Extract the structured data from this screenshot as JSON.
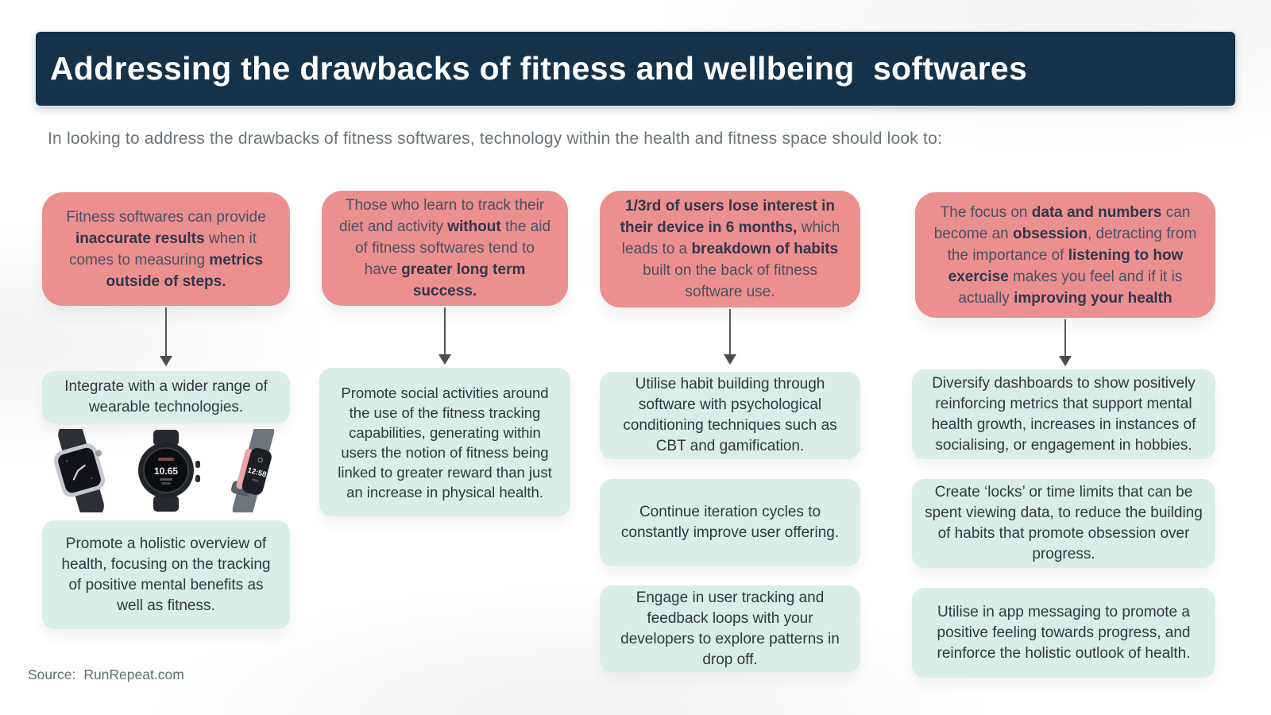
{
  "title": "Addressing the drawbacks of fitness and wellbeing  softwares",
  "subtitle": "In looking to address the drawbacks of fitness softwares, technology within the health and fitness space should look to:",
  "source": {
    "label": "Source:",
    "value": "RunRepeat.com"
  },
  "colors": {
    "navy": "#14334B",
    "pink": "#EB8F8F",
    "mint": "#D8EEE7"
  },
  "watches": {
    "garmin_display": "10.65",
    "fitbit_display": "12:58"
  },
  "columns": [
    {
      "drawback": [
        {
          "text": "Fitness softwares can provide "
        },
        {
          "text": "inaccurate results",
          "bold": true
        },
        {
          "text": " when it comes to measuring "
        },
        {
          "text": "metrics outside of steps.",
          "bold": true
        }
      ],
      "solutions": [
        "Integrate with a wider range of wearable technologies.",
        "Promote a holistic overview of health, focusing on the tracking of positive mental benefits as well as fitness."
      ]
    },
    {
      "drawback": [
        {
          "text": "Those who learn to track their diet and activity "
        },
        {
          "text": "without",
          "bold": true
        },
        {
          "text": " the aid of fitness softwares tend to have "
        },
        {
          "text": "greater long term success.",
          "bold": true
        }
      ],
      "solutions": [
        "Promote social activities around the use of the fitness tracking capabilities, generating within users the notion of fitness being linked to greater reward than just an increase in physical health."
      ]
    },
    {
      "drawback": [
        {
          "text": "1/3rd of users lose interest in their device in 6 months,",
          "bold": true
        },
        {
          "text": " which leads to a "
        },
        {
          "text": "breakdown of habits",
          "bold": true
        },
        {
          "text": " built on the back of fitness software use."
        }
      ],
      "solutions": [
        "Utilise habit building through software with psychological conditioning techniques such as CBT and gamification.",
        "Continue iteration cycles to constantly improve user offering.",
        "Engage in user tracking and feedback loops with your developers to explore patterns in drop off."
      ]
    },
    {
      "drawback": [
        {
          "text": "The focus on "
        },
        {
          "text": "data and numbers",
          "bold": true
        },
        {
          "text": " can become an "
        },
        {
          "text": "obsession",
          "bold": true
        },
        {
          "text": ", detracting from the importance of "
        },
        {
          "text": "listening to how exercise",
          "bold": true
        },
        {
          "text": " makes you feel and if it is actually "
        },
        {
          "text": "improving your health",
          "bold": true
        }
      ],
      "solutions": [
        "Diversify dashboards to show positively reinforcing metrics that support mental health growth, increases in instances of socialising, or engagement in hobbies.",
        "Create ‘locks’ or time limits that can be spent viewing data, to reduce the building of habits that promote obsession over progress.",
        "Utilise in app messaging to promote a positive feeling towards progress, and reinforce the holistic outlook of health."
      ]
    }
  ]
}
